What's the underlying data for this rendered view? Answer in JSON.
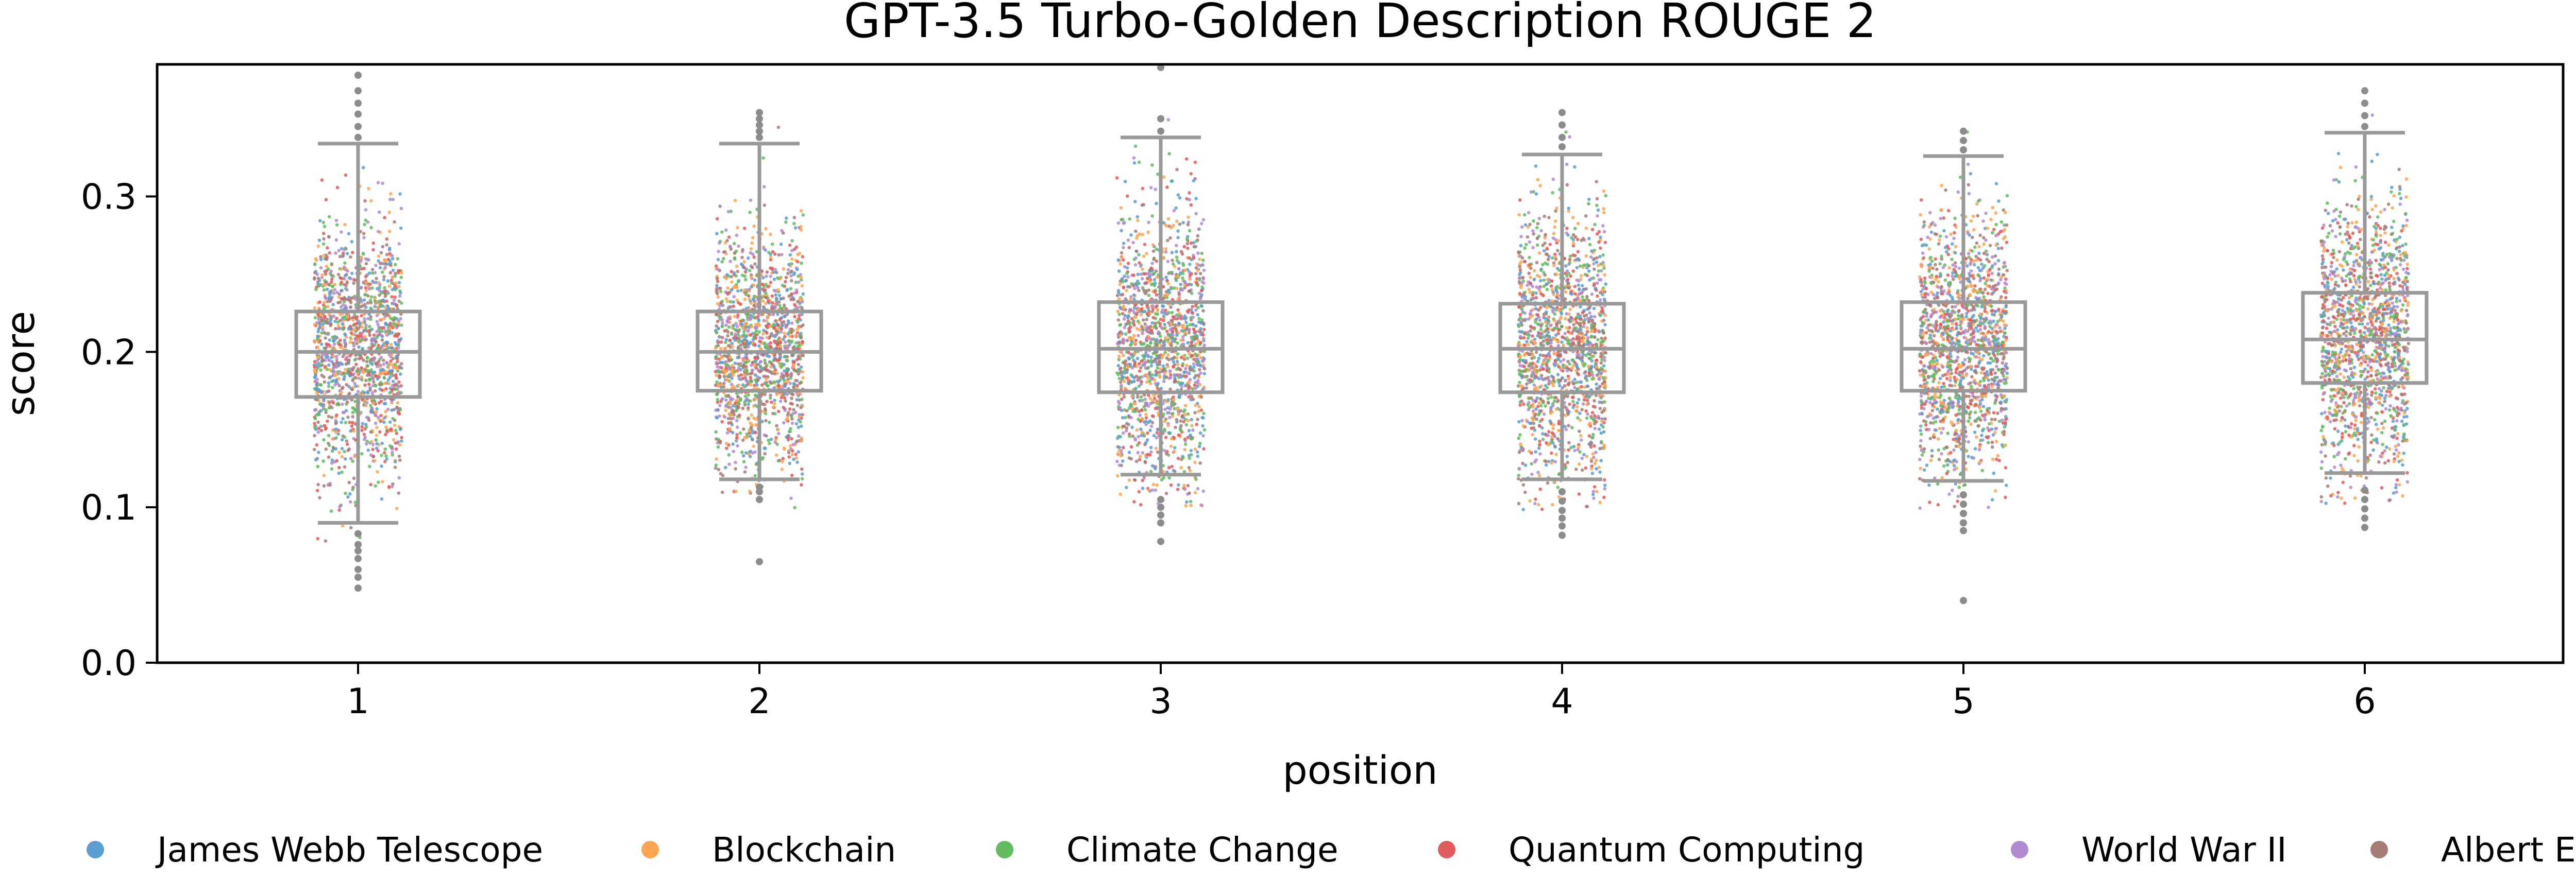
{
  "chart_data": {
    "type": "box-strip",
    "title": "GPT-3.5 Turbo-Golden Description ROUGE 2",
    "xlabel": "position",
    "ylabel": "score",
    "ylim": [
      0.0,
      0.385
    ],
    "yticks": [
      "0.0",
      "0.1",
      "0.2",
      "0.3"
    ],
    "ytick_values": [
      0.0,
      0.1,
      0.2,
      0.3
    ],
    "categories": [
      "1",
      "2",
      "3",
      "4",
      "5",
      "6"
    ],
    "grid": false,
    "legend_position": "bottom",
    "box_color": "#999999",
    "boxes": [
      {
        "position": "1",
        "whisker_low": 0.09,
        "q1": 0.171,
        "median": 0.2,
        "q3": 0.226,
        "whisker_high": 0.334,
        "fliers": [
          0.048,
          0.055,
          0.06,
          0.067,
          0.072,
          0.076,
          0.083,
          0.338,
          0.345,
          0.353,
          0.36,
          0.368,
          0.378
        ]
      },
      {
        "position": "2",
        "whisker_low": 0.118,
        "q1": 0.175,
        "median": 0.2,
        "q3": 0.226,
        "whisker_high": 0.334,
        "fliers": [
          0.065,
          0.105,
          0.11,
          0.113,
          0.338,
          0.342,
          0.346,
          0.35,
          0.354
        ]
      },
      {
        "position": "3",
        "whisker_low": 0.121,
        "q1": 0.174,
        "median": 0.202,
        "q3": 0.232,
        "whisker_high": 0.338,
        "fliers": [
          0.078,
          0.09,
          0.095,
          0.1,
          0.105,
          0.342,
          0.35,
          0.383
        ]
      },
      {
        "position": "4",
        "whisker_low": 0.118,
        "q1": 0.174,
        "median": 0.202,
        "q3": 0.231,
        "whisker_high": 0.327,
        "fliers": [
          0.082,
          0.088,
          0.093,
          0.098,
          0.104,
          0.11,
          0.332,
          0.338,
          0.346,
          0.354
        ]
      },
      {
        "position": "5",
        "whisker_low": 0.117,
        "q1": 0.175,
        "median": 0.202,
        "q3": 0.232,
        "whisker_high": 0.326,
        "fliers": [
          0.04,
          0.085,
          0.09,
          0.096,
          0.102,
          0.108,
          0.33,
          0.336,
          0.342
        ]
      },
      {
        "position": "6",
        "whisker_low": 0.122,
        "q1": 0.18,
        "median": 0.208,
        "q3": 0.238,
        "whisker_high": 0.341,
        "fliers": [
          0.087,
          0.093,
          0.099,
          0.105,
          0.111,
          0.345,
          0.352,
          0.36,
          0.368
        ]
      }
    ],
    "series": [
      {
        "name": "James Webb Telescope",
        "color": "#5b9fd0"
      },
      {
        "name": "Blockchain",
        "color": "#ffa552"
      },
      {
        "name": "Climate Change",
        "color": "#5fbd5f"
      },
      {
        "name": "Quantum Computing",
        "color": "#e05b5b"
      },
      {
        "name": "World War II",
        "color": "#b08ad0"
      },
      {
        "name": "Albert Einstein",
        "color": "#a67c74"
      }
    ]
  }
}
